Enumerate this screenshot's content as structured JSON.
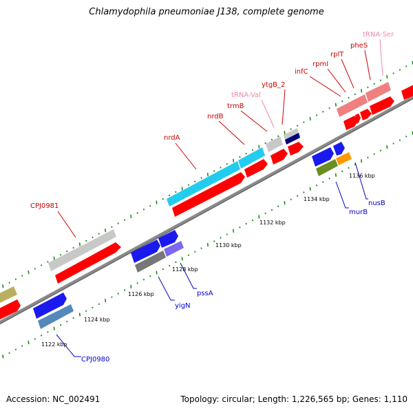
{
  "title": "Chlamydophila pneumoniae J138, complete genome",
  "footer": {
    "accession": "Accession: NC_002491",
    "stats": "Topology: circular; Length: 1,226,565 bp; Genes: 1,110"
  },
  "colors": {
    "cds_red": "#ff0000",
    "label_red": "#cc0000",
    "label_pink": "#ee88aa",
    "label_blue": "#0000cc",
    "blue": "#1a1aee",
    "cyan": "#22ccee",
    "gray": "#c8c8c8",
    "pink": "#f08080",
    "navy": "#000080",
    "olive": "#6b8e23",
    "orange": "#ff9900",
    "steel": "#5588bb",
    "dark_gray": "#777777",
    "purple": "#7b68ee",
    "khaki": "#b8b060",
    "backbone": "#888888",
    "tick_green": "#1a8a1a"
  },
  "ticks": {
    "upper": [
      {
        "kbp": 1122,
        "label": "1122 kbp"
      },
      {
        "kbp": 1124,
        "label": "1124 kbp"
      },
      {
        "kbp": 1126,
        "label": "1126 kbp"
      },
      {
        "kbp": 1128,
        "label": "1128 kbp"
      },
      {
        "kbp": 1130,
        "label": "1130 kbp"
      },
      {
        "kbp": 1132,
        "label": "1132 kbp"
      },
      {
        "kbp": 1134,
        "label": "1134 kbp"
      },
      {
        "kbp": 1136,
        "label": "1136 kbp"
      }
    ]
  },
  "features": {
    "forward": [
      {
        "name": "CPJ0981",
        "color": "red"
      },
      {
        "name": "nrdA",
        "color": "red"
      },
      {
        "name": "nrdB",
        "color": "red"
      },
      {
        "name": "trmB",
        "color": "red"
      },
      {
        "name": "tRNA-Val",
        "color": "pink"
      },
      {
        "name": "ytgB_2",
        "color": "red"
      },
      {
        "name": "infC",
        "color": "red"
      },
      {
        "name": "rpmI",
        "color": "red"
      },
      {
        "name": "rplT",
        "color": "red"
      },
      {
        "name": "pheS",
        "color": "red"
      },
      {
        "name": "tRNA-Ser",
        "color": "pink"
      }
    ],
    "reverse": [
      {
        "name": "CPJ0980",
        "color": "blue"
      },
      {
        "name": "yigN",
        "color": "blue"
      },
      {
        "name": "pssA",
        "color": "blue"
      },
      {
        "name": "murB",
        "color": "blue"
      },
      {
        "name": "nusB",
        "color": "blue"
      }
    ]
  }
}
